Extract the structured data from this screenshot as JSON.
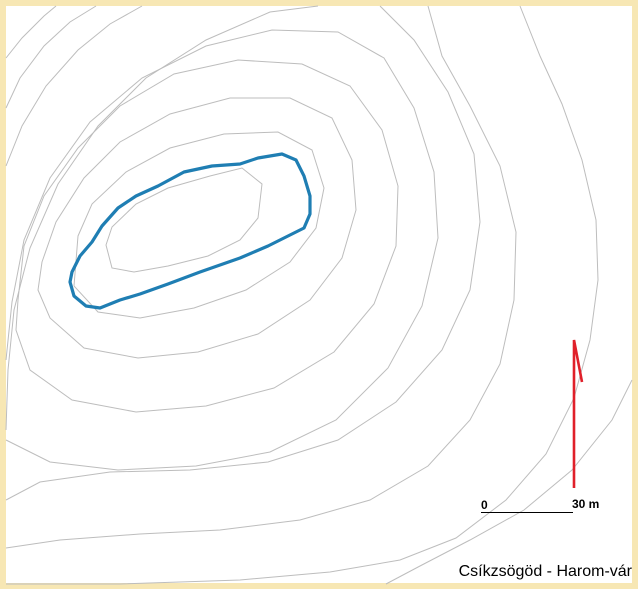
{
  "map": {
    "site_name": "Csíkzsögöd - Harom-vár",
    "scale_start": "0",
    "scale_end": "30 m",
    "colors": {
      "border": "#f7e7b4",
      "contour": "#bdbdbd",
      "wall": "#1f7eb3",
      "north_arrow": "#e0202a"
    },
    "icons": {
      "north_arrow": "north-arrow-icon"
    }
  }
}
